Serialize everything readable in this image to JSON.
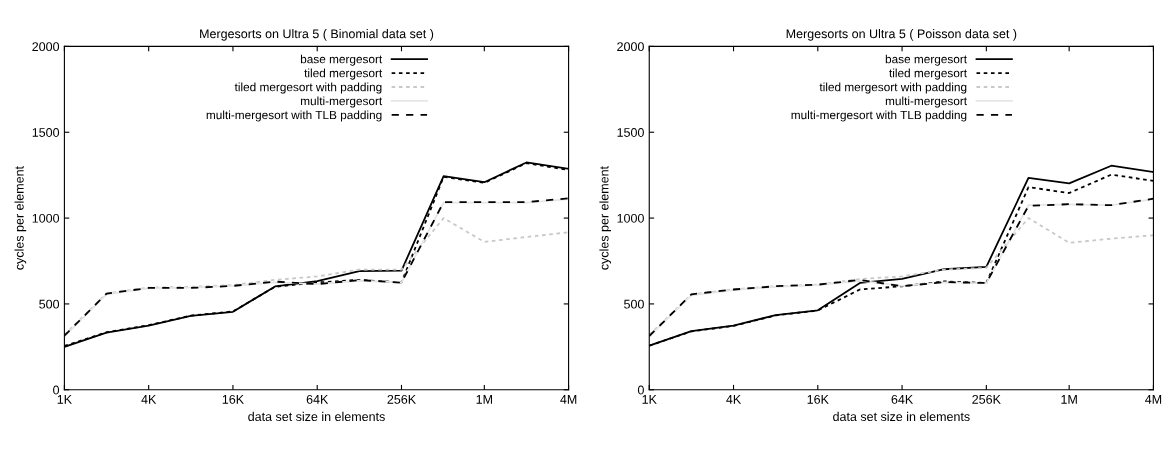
{
  "chart_data": [
    {
      "type": "line",
      "title": "Mergesorts on Ultra 5 ( Binomial data set )",
      "xlabel": "data set size in elements",
      "ylabel": "cycles per element",
      "log": "x",
      "x": [
        1000,
        2000,
        4000,
        8000,
        16000,
        32000,
        64000,
        128000,
        256000,
        512000,
        1000000,
        2000000,
        4000000
      ],
      "xlim": [
        1000,
        4000000
      ],
      "xticks": [
        {
          "value": 1000,
          "label": "1K"
        },
        {
          "value": 4000,
          "label": "4K"
        },
        {
          "value": 16000,
          "label": "16K"
        },
        {
          "value": 64000,
          "label": "64K"
        },
        {
          "value": 256000,
          "label": "256K"
        },
        {
          "value": 1000000,
          "label": "1M"
        },
        {
          "value": 4000000,
          "label": "4M"
        }
      ],
      "ylim": [
        0,
        2000
      ],
      "yticks": [
        0,
        500,
        1000,
        1500,
        2000
      ],
      "grid": false,
      "legend": "top",
      "marker": "none",
      "series": [
        {
          "name": "base mergesort",
          "color": "#000000",
          "line_style": "solid",
          "values": [
            250,
            333,
            374,
            430,
            454,
            602,
            633,
            691,
            694,
            1244,
            1209,
            1324,
            1287
          ]
        },
        {
          "name": "tiled mergesort",
          "color": "#000000",
          "line_style": "dotted",
          "values": [
            255,
            335,
            376,
            432,
            456,
            600,
            625,
            640,
            625,
            1240,
            1205,
            1320,
            1280
          ]
        },
        {
          "name": "tiled mergesort with padding",
          "color": "#c8c8c8",
          "line_style": "dotted",
          "values": [
            320,
            560,
            595,
            600,
            610,
            640,
            660,
            700,
            700,
            1000,
            861,
            890,
            917
          ]
        },
        {
          "name": "multi-mergesort",
          "color": "#e6e6e6",
          "line_style": "solid",
          "values": [
            310,
            555,
            590,
            595,
            605,
            625,
            615,
            635,
            625,
            1090,
            1090,
            1090,
            1110
          ]
        },
        {
          "name": "multi-mergesort with TLB padding",
          "color": "#000000",
          "line_style": "dashed",
          "values": [
            315,
            560,
            593,
            593,
            605,
            630,
            615,
            639,
            624,
            1093,
            1093,
            1093,
            1115
          ]
        }
      ]
    },
    {
      "type": "line",
      "title": "Mergesorts on Ultra 5 ( Poisson data set )",
      "xlabel": "data set size in elements",
      "ylabel": "cycles per element",
      "log": "x",
      "x": [
        1000,
        2000,
        4000,
        8000,
        16000,
        32000,
        64000,
        128000,
        256000,
        512000,
        1000000,
        2000000,
        4000000
      ],
      "xlim": [
        1000,
        4000000
      ],
      "xticks": [
        {
          "value": 1000,
          "label": "1K"
        },
        {
          "value": 4000,
          "label": "4K"
        },
        {
          "value": 16000,
          "label": "16K"
        },
        {
          "value": 64000,
          "label": "64K"
        },
        {
          "value": 256000,
          "label": "256K"
        },
        {
          "value": 1000000,
          "label": "1M"
        },
        {
          "value": 4000000,
          "label": "4M"
        }
      ],
      "ylim": [
        0,
        2000
      ],
      "yticks": [
        0,
        500,
        1000,
        1500,
        2000
      ],
      "grid": false,
      "legend": "top",
      "marker": "none",
      "series": [
        {
          "name": "base mergesort",
          "color": "#000000",
          "line_style": "solid",
          "values": [
            257,
            341,
            373,
            435,
            463,
            622,
            646,
            702,
            716,
            1234,
            1202,
            1305,
            1268
          ]
        },
        {
          "name": "tiled mergesort",
          "color": "#000000",
          "line_style": "dotted",
          "values": [
            257,
            340,
            372,
            433,
            462,
            584,
            603,
            631,
            622,
            1180,
            1146,
            1253,
            1217
          ]
        },
        {
          "name": "tiled mergesort with padding",
          "color": "#c8c8c8",
          "line_style": "dotted",
          "values": [
            320,
            556,
            585,
            603,
            612,
            645,
            660,
            700,
            710,
            1000,
            856,
            880,
            900
          ]
        },
        {
          "name": "multi-mergesort",
          "color": "#e6e6e6",
          "line_style": "solid",
          "values": [
            310,
            550,
            580,
            600,
            610,
            635,
            605,
            625,
            620,
            1075,
            1080,
            1075,
            1110
          ]
        },
        {
          "name": "multi-mergesort with TLB padding",
          "color": "#000000",
          "line_style": "dashed",
          "values": [
            313,
            556,
            584,
            603,
            612,
            640,
            603,
            627,
            622,
            1071,
            1081,
            1075,
            1113
          ]
        }
      ]
    }
  ]
}
